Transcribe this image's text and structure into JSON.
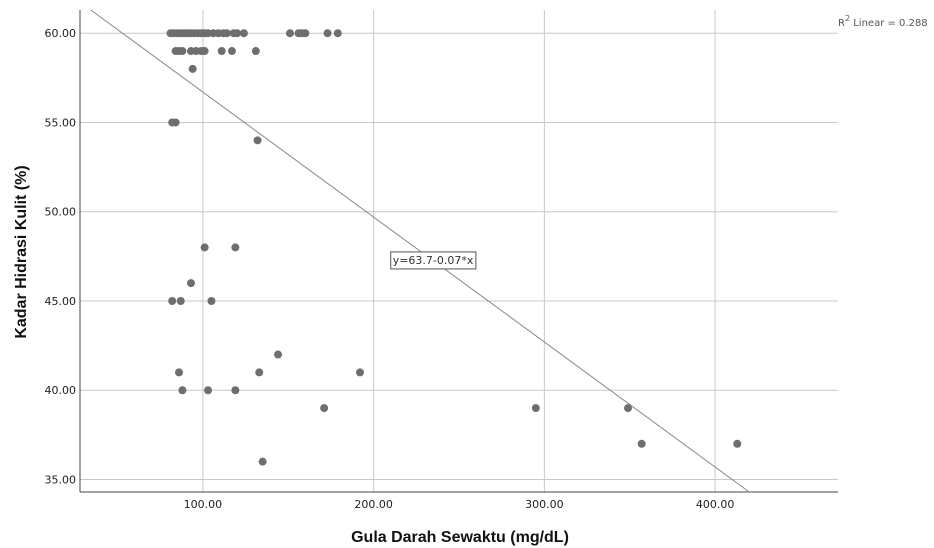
{
  "chart_data": {
    "type": "scatter",
    "xlabel": "Gula Darah Sewaktu (mg/dL)",
    "ylabel": "Kadar Hidrasi Kulit (%)",
    "xlim": [
      28,
      472
    ],
    "ylim": [
      34.3,
      61.3
    ],
    "xticks": [
      100,
      200,
      300,
      400
    ],
    "xtick_labels": [
      "100.00",
      "200.00",
      "300.00",
      "400.00"
    ],
    "yticks": [
      35,
      40,
      45,
      50,
      55,
      60
    ],
    "ytick_labels": [
      "35.00",
      "40.00",
      "45.00",
      "50.00",
      "55.00",
      "60.00"
    ],
    "grid": true,
    "point_color": "#6e6e6e",
    "line_color": "#888888",
    "points": [
      [
        81,
        60
      ],
      [
        83,
        60
      ],
      [
        85,
        60
      ],
      [
        87,
        60
      ],
      [
        89,
        60
      ],
      [
        91,
        60
      ],
      [
        93,
        60
      ],
      [
        95,
        60
      ],
      [
        97,
        60
      ],
      [
        99,
        60
      ],
      [
        101,
        60
      ],
      [
        103,
        60
      ],
      [
        106,
        60
      ],
      [
        109,
        60
      ],
      [
        112,
        60
      ],
      [
        114,
        60
      ],
      [
        118,
        60
      ],
      [
        120,
        60
      ],
      [
        124,
        60
      ],
      [
        151,
        60
      ],
      [
        156,
        60
      ],
      [
        158,
        60
      ],
      [
        160,
        60
      ],
      [
        173,
        60
      ],
      [
        179,
        60
      ],
      [
        84,
        59
      ],
      [
        86,
        59
      ],
      [
        88,
        59
      ],
      [
        93,
        59
      ],
      [
        96,
        59
      ],
      [
        99,
        59
      ],
      [
        101,
        59
      ],
      [
        111,
        59
      ],
      [
        117,
        59
      ],
      [
        131,
        59
      ],
      [
        94,
        58
      ],
      [
        82,
        55
      ],
      [
        84,
        55
      ],
      [
        132,
        54
      ],
      [
        101,
        48
      ],
      [
        119,
        48
      ],
      [
        93,
        46
      ],
      [
        82,
        45
      ],
      [
        87,
        45
      ],
      [
        105,
        45
      ],
      [
        144,
        42
      ],
      [
        86,
        41
      ],
      [
        133,
        41
      ],
      [
        192,
        41
      ],
      [
        88,
        40
      ],
      [
        103,
        40
      ],
      [
        119,
        40
      ],
      [
        171,
        39
      ],
      [
        295,
        39
      ],
      [
        349,
        39
      ],
      [
        357,
        37
      ],
      [
        413,
        37
      ],
      [
        135,
        36
      ]
    ],
    "fit_line": {
      "intercept": 63.7,
      "slope": -0.07
    },
    "annotations": {
      "equation": "y=63.7-0.07*x",
      "r2_sup": "2",
      "r2_rest": " Linear = 0.288"
    }
  }
}
